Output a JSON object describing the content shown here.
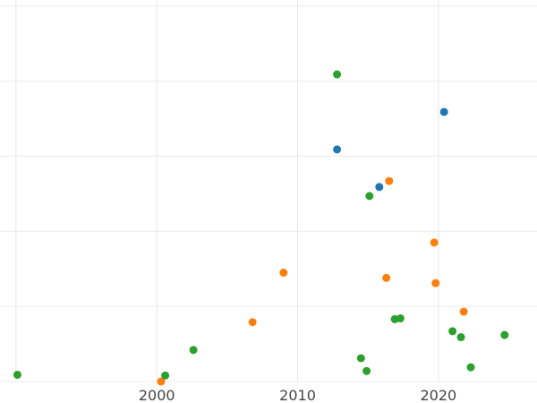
{
  "chart_data": {
    "type": "scatter",
    "title": "",
    "xlabel": "",
    "ylabel": "",
    "xlim": [
      1988.8,
      2027
    ],
    "ylim": [
      0,
      5.08
    ],
    "grid": true,
    "legend": "none",
    "x_ticks": [
      1990,
      2000,
      2010,
      2020
    ],
    "x_tick_labels": [
      "",
      "2000",
      "2010",
      "2020"
    ],
    "y_ticks": [
      0,
      1,
      2,
      3,
      4,
      5
    ],
    "series": [
      {
        "color": "#1f77b4",
        "points": [
          {
            "x": 2012.8,
            "y": 3.09
          },
          {
            "x": 2015.8,
            "y": 2.59
          },
          {
            "x": 2020.4,
            "y": 3.59
          }
        ]
      },
      {
        "color": "#ff7f0e",
        "points": [
          {
            "x": 2000.3,
            "y": 0.0
          },
          {
            "x": 2006.8,
            "y": 0.79
          },
          {
            "x": 2009.0,
            "y": 1.45
          },
          {
            "x": 2016.3,
            "y": 1.38
          },
          {
            "x": 2016.5,
            "y": 2.67
          },
          {
            "x": 2019.7,
            "y": 1.85
          },
          {
            "x": 2019.8,
            "y": 1.31
          },
          {
            "x": 2021.8,
            "y": 0.93
          }
        ]
      },
      {
        "color": "#2ca02c",
        "points": [
          {
            "x": 1990.1,
            "y": 0.09
          },
          {
            "x": 2000.6,
            "y": 0.08
          },
          {
            "x": 2002.6,
            "y": 0.42
          },
          {
            "x": 2012.8,
            "y": 4.09
          },
          {
            "x": 2014.5,
            "y": 0.31
          },
          {
            "x": 2014.9,
            "y": 0.14
          },
          {
            "x": 2015.1,
            "y": 2.47
          },
          {
            "x": 2016.9,
            "y": 0.83
          },
          {
            "x": 2017.3,
            "y": 0.84
          },
          {
            "x": 2021.0,
            "y": 0.67
          },
          {
            "x": 2021.6,
            "y": 0.59
          },
          {
            "x": 2022.3,
            "y": 0.19
          },
          {
            "x": 2024.7,
            "y": 0.62
          }
        ]
      }
    ]
  }
}
